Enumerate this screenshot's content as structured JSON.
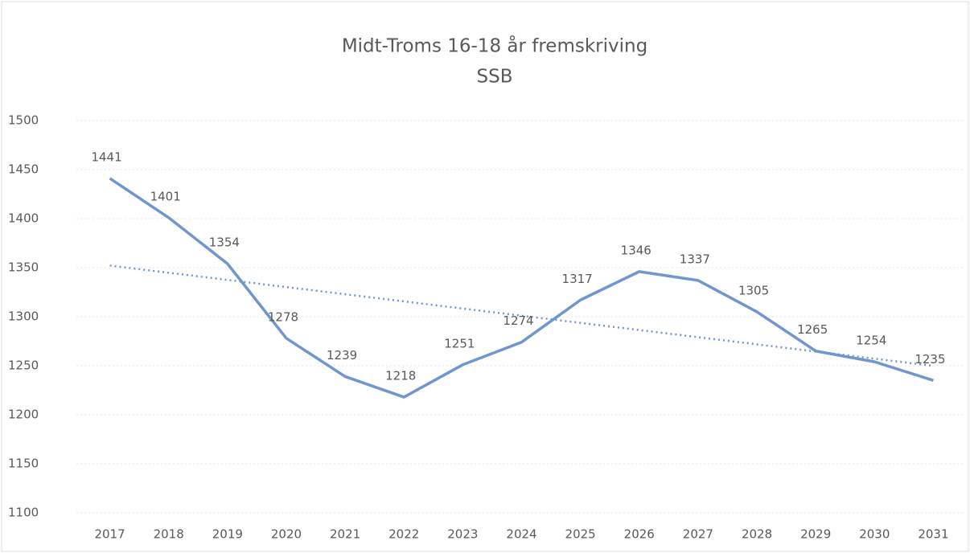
{
  "chart_data": {
    "type": "line",
    "title": "Midt-Troms 16-18 år fremskriving",
    "subtitle": "SSB",
    "categories": [
      "2017",
      "2018",
      "2019",
      "2020",
      "2021",
      "2022",
      "2023",
      "2024",
      "2025",
      "2026",
      "2027",
      "2028",
      "2029",
      "2030",
      "2031"
    ],
    "values": [
      1441,
      1401,
      1354,
      1278,
      1239,
      1218,
      1251,
      1274,
      1317,
      1346,
      1337,
      1305,
      1265,
      1254,
      1235
    ],
    "color": "#7096d0",
    "ylim": [
      1100,
      1500
    ],
    "yticks": [
      1100,
      1150,
      1200,
      1250,
      1300,
      1350,
      1400,
      1450,
      1500
    ],
    "grid": true,
    "data_labels": true,
    "trendline": {
      "type": "linear",
      "style": "dotted"
    }
  }
}
